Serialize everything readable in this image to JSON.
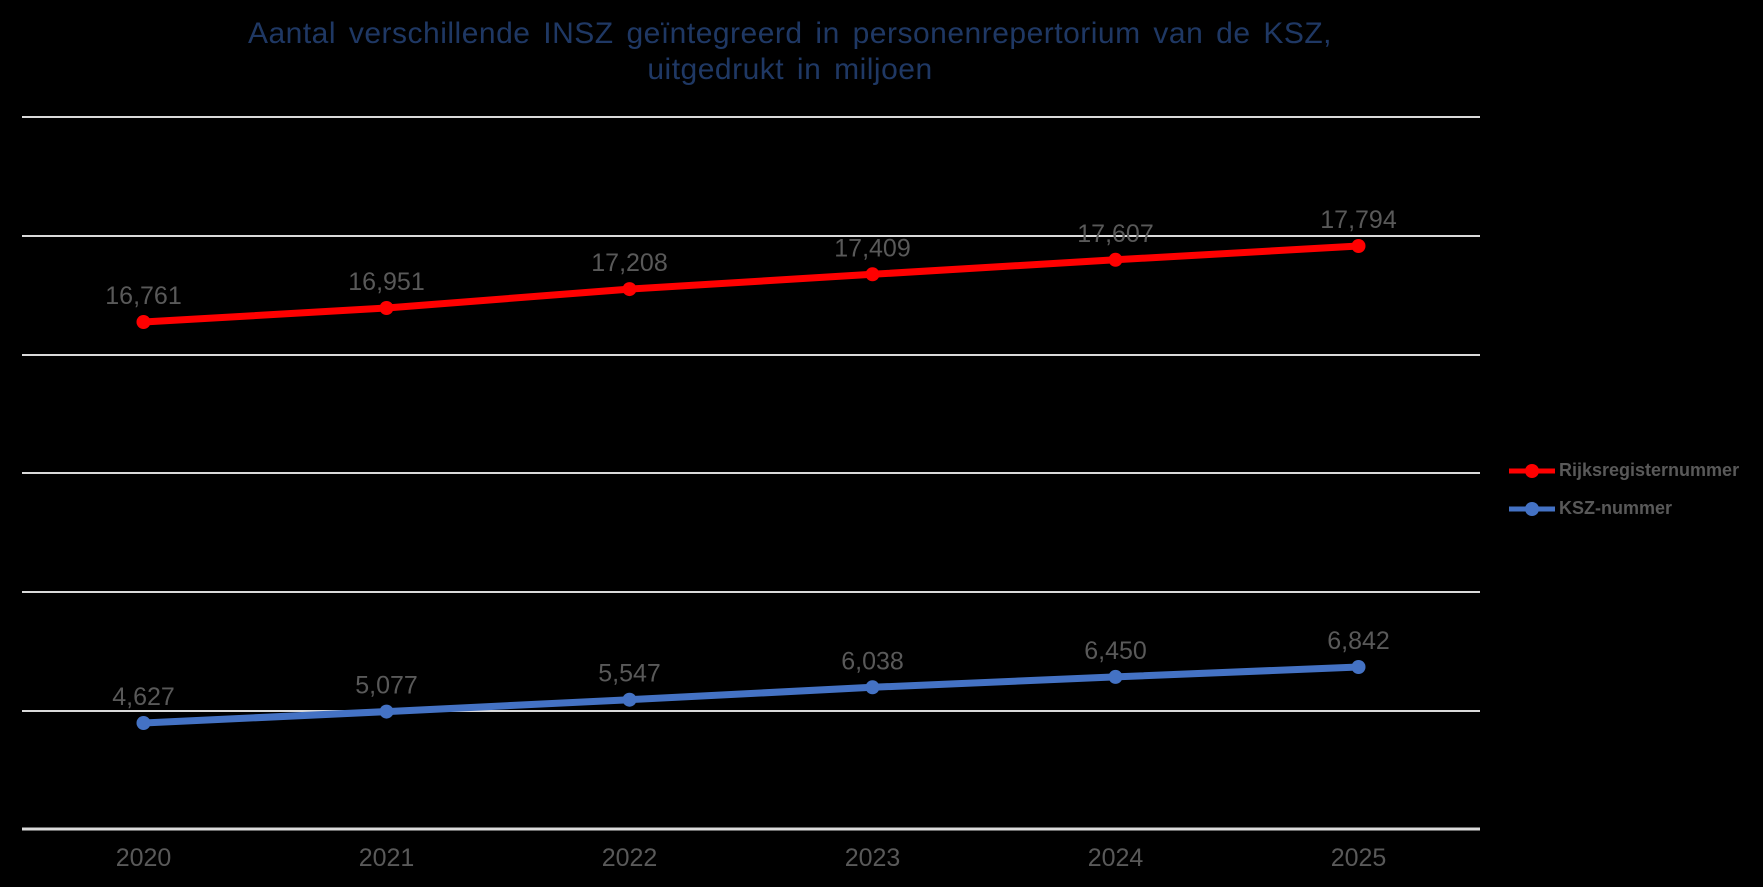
{
  "title": {
    "line1": "Aantal verschillende INSZ geïntegreerd in personenrepertorium van de KSZ,",
    "line2": "uitgedrukt in miljoen",
    "color": "#1F3864"
  },
  "legend": {
    "text_color": "#595959",
    "items": [
      {
        "label": "Rijksregisternummer",
        "color": "#FF0000"
      },
      {
        "label": "KSZ-nummer",
        "color": "#4472C4"
      }
    ]
  },
  "chart_data": {
    "type": "line",
    "title": "Aantal verschillende INSZ geïntegreerd in personenrepertorium van de KSZ, uitgedrukt in miljoen",
    "categories": [
      "2020",
      "2021",
      "2022",
      "2023",
      "2024",
      "2025"
    ],
    "series": [
      {
        "name": "Rijksregisternummer",
        "color": "#FF0000",
        "values": [
          16.761,
          16.951,
          17.208,
          17.409,
          17.607,
          17.794
        ],
        "labels": [
          "16,761",
          "16,951",
          "17,208",
          "17,409",
          "17,607",
          "17,794"
        ]
      },
      {
        "name": "KSZ-nummer",
        "color": "#4472C4",
        "values": [
          4.627,
          5.077,
          5.547,
          6.038,
          6.45,
          6.842
        ],
        "labels": [
          "4,627",
          "5,077",
          "5,547",
          "6,038",
          "6,450",
          "6,842"
        ]
      }
    ],
    "unit": "miljoen",
    "decimal_separator": ",",
    "grid": true,
    "gridline_color": "#DADADA",
    "label_color": "#595959",
    "background": "#000000",
    "legend_position": "right",
    "x_axis": {
      "visible": true
    },
    "y_axis": {
      "visible": false
    }
  }
}
